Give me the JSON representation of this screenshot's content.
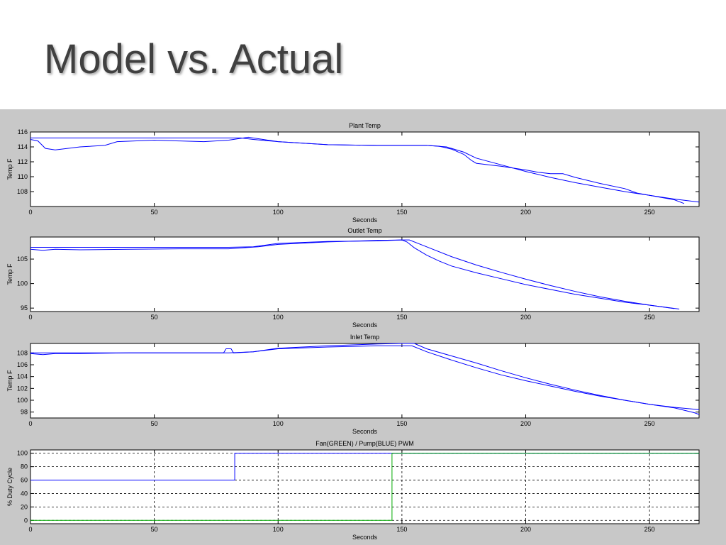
{
  "slide": {
    "title": "Model vs. Actual"
  },
  "chart_data": [
    {
      "type": "line",
      "title": "Plant Temp",
      "xlabel": "Seconds",
      "ylabel": "Temp F",
      "xlim": [
        0,
        270
      ],
      "ylim": [
        106,
        116
      ],
      "xticks": [
        0,
        50,
        100,
        150,
        200,
        250
      ],
      "yticks": [
        108,
        110,
        112,
        114,
        116
      ],
      "grid": false,
      "series": [
        {
          "color": "#0000ff",
          "x": [
            0,
            80,
            85,
            90,
            100,
            120,
            140,
            150,
            160,
            168,
            175,
            180,
            190,
            200,
            210,
            220,
            230,
            240,
            250,
            260,
            270
          ],
          "y": [
            115.2,
            115.2,
            115.2,
            115.0,
            114.7,
            114.3,
            114.2,
            114.2,
            114.2,
            114.0,
            113.3,
            112.5,
            111.6,
            110.7,
            109.9,
            109.2,
            108.6,
            108.0,
            107.5,
            107.0,
            106.6
          ]
        },
        {
          "color": "#0000ff",
          "x": [
            0,
            3,
            6,
            10,
            20,
            30,
            35,
            50,
            60,
            70,
            80,
            88,
            100,
            120,
            140,
            150,
            160,
            165,
            170,
            175,
            178,
            180,
            185,
            190,
            200,
            205,
            210,
            215,
            220,
            230,
            240,
            245,
            250,
            255,
            260,
            264
          ],
          "y": [
            115.0,
            114.8,
            113.8,
            113.6,
            114.0,
            114.2,
            114.7,
            114.9,
            114.8,
            114.7,
            114.9,
            115.3,
            114.7,
            114.3,
            114.2,
            114.2,
            114.2,
            114.1,
            113.7,
            113.0,
            112.2,
            111.8,
            111.6,
            111.4,
            110.9,
            110.6,
            110.4,
            110.4,
            109.9,
            109.1,
            108.4,
            107.8,
            107.5,
            107.2,
            106.9,
            106.4
          ]
        }
      ]
    },
    {
      "type": "line",
      "title": "Outlet Temp",
      "xlabel": "Seconds",
      "ylabel": "Temp F",
      "xlim": [
        0,
        270
      ],
      "ylim": [
        94.3,
        109.5
      ],
      "xticks": [
        0,
        50,
        100,
        150,
        200,
        250
      ],
      "yticks": [
        95,
        100,
        105
      ],
      "grid": false,
      "series": [
        {
          "color": "#0000ff",
          "x": [
            0,
            80,
            90,
            100,
            120,
            140,
            150,
            153,
            160,
            170,
            180,
            190,
            200,
            210,
            220,
            230,
            240,
            250,
            260
          ],
          "y": [
            107.4,
            107.4,
            107.5,
            108.2,
            108.6,
            108.7,
            108.9,
            108.9,
            107.5,
            105.5,
            103.8,
            102.3,
            100.9,
            99.6,
            98.4,
            97.3,
            96.4,
            95.6,
            94.9
          ]
        },
        {
          "color": "#0000ff",
          "x": [
            0,
            5,
            10,
            20,
            40,
            60,
            80,
            92,
            100,
            120,
            140,
            150,
            152,
            155,
            160,
            165,
            170,
            180,
            190,
            200,
            210,
            220,
            230,
            240,
            250,
            262
          ],
          "y": [
            107.0,
            106.8,
            107.0,
            106.9,
            107.0,
            107.1,
            107.1,
            107.5,
            108.0,
            108.5,
            108.8,
            108.9,
            108.5,
            107.3,
            105.8,
            104.6,
            103.6,
            102.2,
            101.0,
            99.8,
            98.8,
            97.8,
            97.0,
            96.2,
            95.6,
            94.8
          ]
        }
      ]
    },
    {
      "type": "line",
      "title": "Inlet Temp",
      "xlabel": "Seconds",
      "ylabel": "Temp F",
      "xlim": [
        0,
        270
      ],
      "ylim": [
        97,
        109.6
      ],
      "xticks": [
        0,
        50,
        100,
        150,
        200,
        250
      ],
      "yticks": [
        98,
        100,
        102,
        104,
        106,
        108
      ],
      "grid": false,
      "series": [
        {
          "color": "#0000ff",
          "x": [
            0,
            80,
            90,
            100,
            120,
            140,
            150,
            154,
            160,
            170,
            180,
            190,
            200,
            210,
            220,
            230,
            240,
            250,
            260,
            270
          ],
          "y": [
            108.0,
            108.0,
            108.2,
            108.7,
            109.0,
            109.2,
            109.2,
            109.2,
            108.2,
            106.8,
            105.5,
            104.3,
            103.3,
            102.4,
            101.5,
            100.7,
            100.0,
            99.3,
            98.8,
            98.4
          ]
        },
        {
          "color": "#0000ff",
          "x": [
            0,
            5,
            10,
            20,
            40,
            60,
            78,
            79,
            81,
            82,
            90,
            100,
            120,
            140,
            150,
            155,
            160,
            170,
            180,
            190,
            200,
            210,
            220,
            230,
            240,
            250,
            260,
            268,
            270
          ],
          "y": [
            107.9,
            107.7,
            107.9,
            107.9,
            108.0,
            108.0,
            108.0,
            108.7,
            108.7,
            108.0,
            108.2,
            108.8,
            109.2,
            109.5,
            109.6,
            109.6,
            108.7,
            107.5,
            106.3,
            105.0,
            103.8,
            102.7,
            101.7,
            100.8,
            100.0,
            99.3,
            98.7,
            97.9,
            97.6
          ]
        }
      ]
    },
    {
      "type": "line",
      "title": "Fan(GREEN) / Pump(BLUE) PWM",
      "xlabel": "Seconds",
      "ylabel": "% Duty Cycle",
      "xlim": [
        0,
        270
      ],
      "ylim": [
        -5,
        105
      ],
      "xticks": [
        0,
        50,
        100,
        150,
        200,
        250
      ],
      "yticks": [
        0,
        20,
        40,
        60,
        80,
        100
      ],
      "grid": true,
      "series": [
        {
          "color": "#0000ff",
          "x": [
            0,
            82.5,
            82.5,
            270
          ],
          "y": [
            60,
            60,
            100,
            100
          ]
        },
        {
          "color": "#00aa00",
          "x": [
            0,
            146,
            146,
            270
          ],
          "y": [
            0,
            0,
            100,
            100
          ]
        }
      ]
    }
  ]
}
